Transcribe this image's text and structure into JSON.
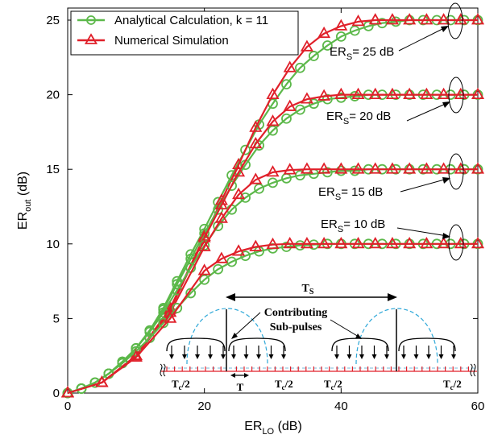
{
  "chart_data": {
    "type": "line",
    "xlabel": {
      "main": "ER",
      "sub": "LO",
      "unit": " (dB)"
    },
    "ylabel": {
      "main": "ER",
      "sub": "out",
      "unit": " (dB)"
    },
    "xlim": [
      0,
      60
    ],
    "ylim": [
      0,
      26
    ],
    "xticks": [
      0,
      20,
      40,
      60
    ],
    "yticks": [
      0,
      5,
      10,
      15,
      20,
      25
    ],
    "grid": false,
    "legend_position": "top-left",
    "legend": [
      {
        "label": "Analytical Calculation, k = 11",
        "color": "#5cb84a",
        "marker": "circle"
      },
      {
        "label": "Numerical Simulation",
        "color": "#e0202a",
        "marker": "triangle"
      }
    ],
    "annotations": [
      {
        "main": "ER",
        "sub": "S",
        "rest": "= 25 dB"
      },
      {
        "main": "ER",
        "sub": "S",
        "rest": "= 20 dB"
      },
      {
        "main": "ER",
        "sub": "S",
        "rest": "= 15 dB"
      },
      {
        "main": "ER",
        "sub": "S",
        "rest": "= 10 dB"
      }
    ],
    "series": [
      {
        "legend_index": 0,
        "es": 25,
        "x": [
          0,
          2,
          4,
          6,
          8,
          10,
          12,
          14,
          16,
          18,
          20,
          22,
          24,
          26,
          28,
          30,
          32,
          34,
          36,
          38,
          40,
          42,
          44,
          46,
          48,
          50,
          52,
          54,
          56,
          58,
          60
        ],
        "y": [
          0,
          0.3,
          0.7,
          1.3,
          2.1,
          3.0,
          4.2,
          5.7,
          7.5,
          9.3,
          11.0,
          12.8,
          14.6,
          16.3,
          18.0,
          19.4,
          20.7,
          21.8,
          22.6,
          23.3,
          23.9,
          24.3,
          24.6,
          24.8,
          24.9,
          25.0,
          25.0,
          25.0,
          25.0,
          25.0,
          25.0
        ]
      },
      {
        "legend_index": 1,
        "es": 25,
        "x": [
          0,
          5,
          10,
          15,
          20,
          22.5,
          25,
          27.5,
          30,
          32.5,
          35,
          37.5,
          40,
          42.5,
          45,
          47.5,
          50,
          52.5,
          55,
          57.5,
          60
        ],
        "y": [
          0,
          0.7,
          2.5,
          5.7,
          10.5,
          12.9,
          15.3,
          17.8,
          20.0,
          21.8,
          23.2,
          24.1,
          24.6,
          24.9,
          25.0,
          25.0,
          25.0,
          25.0,
          25.0,
          25.0,
          25.0
        ]
      },
      {
        "legend_index": 0,
        "es": 20,
        "x": [
          0,
          2,
          4,
          6,
          8,
          10,
          12,
          14,
          16,
          18,
          20,
          22,
          24,
          26,
          28,
          30,
          32,
          34,
          36,
          38,
          40,
          42,
          44,
          46,
          48,
          50,
          52,
          54,
          56,
          58,
          60
        ],
        "y": [
          0,
          0.3,
          0.7,
          1.3,
          2.1,
          3.0,
          4.2,
          5.6,
          7.3,
          9.0,
          10.7,
          12.3,
          13.9,
          15.3,
          16.6,
          17.6,
          18.4,
          19.0,
          19.4,
          19.7,
          19.8,
          19.9,
          20.0,
          20.0,
          20.0,
          20.0,
          20.0,
          20.0,
          20.0,
          20.0,
          20.0
        ]
      },
      {
        "legend_index": 1,
        "es": 20,
        "x": [
          0,
          5,
          10,
          15,
          20,
          22.5,
          25,
          27.5,
          30,
          32.5,
          35,
          37.5,
          40,
          42.5,
          45,
          47.5,
          50,
          52.5,
          55,
          57.5,
          60
        ],
        "y": [
          0,
          0.7,
          2.5,
          5.6,
          10.4,
          12.6,
          14.8,
          16.7,
          18.2,
          19.2,
          19.7,
          19.9,
          20.0,
          20.0,
          20.0,
          20.0,
          20.0,
          20.0,
          20.0,
          20.0,
          20.0
        ]
      },
      {
        "legend_index": 0,
        "es": 15,
        "x": [
          0,
          2,
          4,
          6,
          8,
          10,
          12,
          14,
          16,
          18,
          20,
          22,
          24,
          26,
          28,
          30,
          32,
          34,
          36,
          38,
          40,
          42,
          44,
          46,
          48,
          50,
          52,
          54,
          56,
          58,
          60
        ],
        "y": [
          0,
          0.3,
          0.7,
          1.3,
          2.1,
          3.0,
          4.1,
          5.4,
          6.9,
          8.4,
          9.9,
          11.2,
          12.3,
          13.1,
          13.7,
          14.1,
          14.4,
          14.6,
          14.7,
          14.8,
          14.9,
          14.9,
          15.0,
          15.0,
          15.0,
          15.0,
          15.0,
          15.0,
          15.0,
          15.0,
          15.0
        ]
      },
      {
        "legend_index": 1,
        "es": 15,
        "x": [
          0,
          5,
          10,
          15,
          20,
          22.5,
          25,
          27.5,
          30,
          32.5,
          35,
          37.5,
          40,
          42.5,
          45,
          47.5,
          50,
          52.5,
          55,
          57.5,
          60
        ],
        "y": [
          0,
          0.7,
          2.5,
          5.4,
          9.8,
          11.7,
          13.3,
          14.3,
          14.8,
          14.95,
          15.0,
          15.0,
          15.0,
          15.0,
          15.0,
          15.0,
          15.0,
          15.0,
          15.0,
          15.0,
          15.0
        ]
      },
      {
        "legend_index": 0,
        "es": 10,
        "x": [
          0,
          2,
          4,
          6,
          8,
          10,
          12,
          14,
          16,
          18,
          20,
          22,
          24,
          26,
          28,
          30,
          32,
          34,
          36,
          38,
          40,
          42,
          44,
          46,
          48,
          50,
          52,
          54,
          56,
          58,
          60
        ],
        "y": [
          0,
          0.3,
          0.7,
          1.3,
          2.0,
          2.8,
          3.7,
          4.7,
          5.7,
          6.7,
          7.6,
          8.3,
          8.8,
          9.2,
          9.5,
          9.7,
          9.8,
          9.9,
          9.95,
          10.0,
          10.0,
          10.0,
          10.0,
          10.0,
          10.0,
          10.0,
          10.0,
          10.0,
          10.0,
          10.0,
          10.0
        ]
      },
      {
        "legend_index": 1,
        "es": 10,
        "x": [
          0,
          5,
          10,
          15,
          20,
          22.5,
          25,
          27.5,
          30,
          32.5,
          35,
          37.5,
          40,
          42.5,
          45,
          47.5,
          50,
          52.5,
          55,
          57.5,
          60
        ],
        "y": [
          0,
          0.7,
          2.4,
          5.0,
          8.2,
          9.0,
          9.5,
          9.8,
          9.95,
          10.0,
          10.0,
          10.0,
          10.0,
          10.0,
          10.0,
          10.0,
          10.0,
          10.0,
          10.0,
          10.0,
          10.0
        ]
      }
    ],
    "inset": {
      "ts": {
        "main": "T",
        "sub": "S"
      },
      "contrib_1": "Contributing",
      "contrib_2": "Sub-pulses",
      "tc": [
        {
          "main": "T",
          "sub": "c",
          "rest": "/2"
        },
        {
          "main": "T",
          "sub": "c",
          "rest": "/2"
        },
        {
          "main": "T",
          "sub": "c",
          "rest": "/2"
        },
        {
          "main": "T",
          "sub": "c",
          "rest": "/2"
        }
      ],
      "t": "T"
    }
  }
}
